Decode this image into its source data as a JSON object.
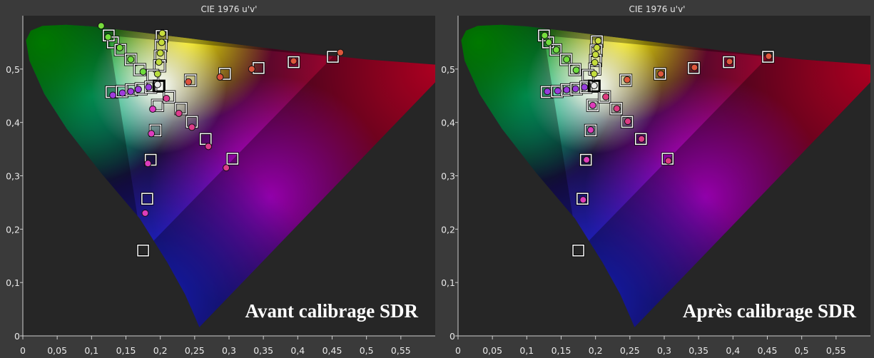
{
  "chart_data": [
    {
      "type": "scatter",
      "title": "CIE 1976 u'v'",
      "caption": "Avant calibrage SDR",
      "xlabel": "",
      "ylabel": "",
      "xlim": [
        0,
        0.6
      ],
      "ylim": [
        0,
        0.6
      ],
      "x_ticks": [
        "0",
        "0,05",
        "0,1",
        "0,15",
        "0,2",
        "0,25",
        "0,3",
        "0,35",
        "0,4",
        "0,45",
        "0,5",
        "0,55"
      ],
      "y_ticks": [
        "0",
        "0,1",
        "0,2",
        "0,3",
        "0,4",
        "0,5"
      ],
      "grid": false,
      "background": "CIE 1976 chromaticity diagram with colored gamut triangle",
      "gamut_triangle": [
        [
          0.451,
          0.523
        ],
        [
          0.125,
          0.563
        ],
        [
          0.175,
          0.158
        ]
      ],
      "white_point": [
        0.198,
        0.468
      ],
      "series": [
        {
          "marker": "square",
          "points": [
            [
              0.125,
              0.563
            ],
            [
              0.131,
              0.55
            ],
            [
              0.142,
              0.536
            ],
            [
              0.157,
              0.518
            ],
            [
              0.17,
              0.499
            ],
            [
              0.198,
              0.468
            ],
            [
              0.202,
              0.562
            ],
            [
              0.201,
              0.544
            ],
            [
              0.2,
              0.524
            ],
            [
              0.199,
              0.506
            ],
            [
              0.189,
              0.488
            ],
            [
              0.129,
              0.457
            ],
            [
              0.144,
              0.458
            ],
            [
              0.158,
              0.461
            ],
            [
              0.172,
              0.463
            ],
            [
              0.186,
              0.466
            ],
            [
              0.196,
              0.432
            ],
            [
              0.213,
              0.448
            ],
            [
              0.23,
              0.426
            ],
            [
              0.246,
              0.401
            ],
            [
              0.266,
              0.369
            ],
            [
              0.305,
              0.332
            ],
            [
              0.193,
              0.385
            ],
            [
              0.186,
              0.33
            ],
            [
              0.181,
              0.257
            ],
            [
              0.175,
              0.16
            ],
            [
              0.244,
              0.479
            ],
            [
              0.294,
              0.491
            ],
            [
              0.343,
              0.502
            ],
            [
              0.394,
              0.513
            ],
            [
              0.451,
              0.523
            ]
          ]
        },
        {
          "marker": "circle",
          "points": [
            [
              0.114,
              0.581
            ],
            [
              0.124,
              0.56
            ],
            [
              0.141,
              0.54
            ],
            [
              0.157,
              0.518
            ],
            [
              0.175,
              0.495
            ],
            [
              0.203,
              0.567
            ],
            [
              0.202,
              0.55
            ],
            [
              0.2,
              0.53
            ],
            [
              0.198,
              0.513
            ],
            [
              0.196,
              0.491
            ],
            [
              0.196,
              0.471
            ],
            [
              0.131,
              0.451
            ],
            [
              0.145,
              0.455
            ],
            [
              0.157,
              0.458
            ],
            [
              0.168,
              0.462
            ],
            [
              0.183,
              0.466
            ],
            [
              0.189,
              0.425
            ],
            [
              0.209,
              0.445
            ],
            [
              0.227,
              0.417
            ],
            [
              0.246,
              0.391
            ],
            [
              0.27,
              0.355
            ],
            [
              0.296,
              0.315
            ],
            [
              0.187,
              0.379
            ],
            [
              0.182,
              0.323
            ],
            [
              0.178,
              0.23
            ],
            [
              0.241,
              0.476
            ],
            [
              0.287,
              0.485
            ],
            [
              0.333,
              0.5
            ],
            [
              0.394,
              0.515
            ],
            [
              0.462,
              0.531
            ]
          ]
        }
      ]
    },
    {
      "type": "scatter",
      "title": "CIE 1976 u'v'",
      "caption": "Après calibrage SDR",
      "xlabel": "",
      "ylabel": "",
      "xlim": [
        0,
        0.6
      ],
      "ylim": [
        0,
        0.6
      ],
      "x_ticks": [
        "0",
        "0,05",
        "0,1",
        "0,15",
        "0,2",
        "0,25",
        "0,3",
        "0,35",
        "0,4",
        "0,45",
        "0,5",
        "0,55"
      ],
      "y_ticks": [
        "0",
        "0,1",
        "0,2",
        "0,3",
        "0,4",
        "0,5"
      ],
      "grid": false,
      "background": "CIE 1976 chromaticity diagram with colored gamut triangle",
      "gamut_triangle": [
        [
          0.451,
          0.523
        ],
        [
          0.125,
          0.563
        ],
        [
          0.175,
          0.158
        ]
      ],
      "white_point": [
        0.198,
        0.468
      ],
      "series": [
        {
          "marker": "square",
          "points": [
            [
              0.125,
              0.563
            ],
            [
              0.131,
              0.55
            ],
            [
              0.142,
              0.536
            ],
            [
              0.157,
              0.518
            ],
            [
              0.17,
              0.499
            ],
            [
              0.198,
              0.468
            ],
            [
              0.202,
              0.552
            ],
            [
              0.201,
              0.535
            ],
            [
              0.2,
              0.516
            ],
            [
              0.199,
              0.5
            ],
            [
              0.189,
              0.488
            ],
            [
              0.129,
              0.457
            ],
            [
              0.144,
              0.458
            ],
            [
              0.158,
              0.461
            ],
            [
              0.172,
              0.463
            ],
            [
              0.186,
              0.466
            ],
            [
              0.196,
              0.432
            ],
            [
              0.213,
              0.448
            ],
            [
              0.23,
              0.426
            ],
            [
              0.246,
              0.401
            ],
            [
              0.266,
              0.369
            ],
            [
              0.305,
              0.332
            ],
            [
              0.193,
              0.385
            ],
            [
              0.186,
              0.33
            ],
            [
              0.181,
              0.257
            ],
            [
              0.175,
              0.16
            ],
            [
              0.244,
              0.479
            ],
            [
              0.294,
              0.491
            ],
            [
              0.343,
              0.502
            ],
            [
              0.394,
              0.513
            ],
            [
              0.451,
              0.523
            ]
          ]
        },
        {
          "marker": "circle",
          "points": [
            [
              0.126,
              0.563
            ],
            [
              0.132,
              0.55
            ],
            [
              0.143,
              0.536
            ],
            [
              0.158,
              0.518
            ],
            [
              0.172,
              0.498
            ],
            [
              0.198,
              0.469
            ],
            [
              0.204,
              0.553
            ],
            [
              0.202,
              0.54
            ],
            [
              0.2,
              0.527
            ],
            [
              0.199,
              0.512
            ],
            [
              0.198,
              0.491
            ],
            [
              0.13,
              0.458
            ],
            [
              0.145,
              0.459
            ],
            [
              0.158,
              0.461
            ],
            [
              0.171,
              0.463
            ],
            [
              0.184,
              0.466
            ],
            [
              0.196,
              0.432
            ],
            [
              0.215,
              0.448
            ],
            [
              0.231,
              0.426
            ],
            [
              0.247,
              0.402
            ],
            [
              0.267,
              0.369
            ],
            [
              0.306,
              0.328
            ],
            [
              0.193,
              0.386
            ],
            [
              0.187,
              0.33
            ],
            [
              0.182,
              0.255
            ],
            [
              0.246,
              0.48
            ],
            [
              0.295,
              0.491
            ],
            [
              0.344,
              0.503
            ],
            [
              0.395,
              0.514
            ],
            [
              0.452,
              0.524
            ]
          ]
        }
      ]
    }
  ]
}
